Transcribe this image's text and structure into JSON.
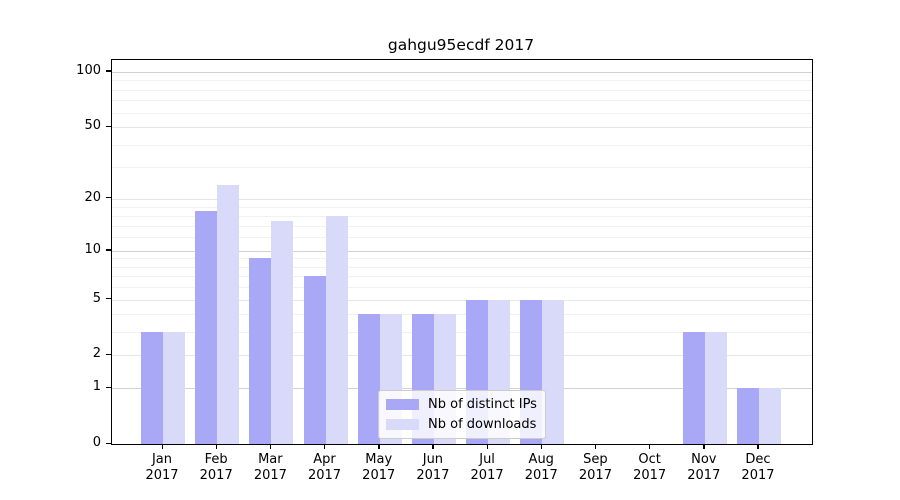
{
  "title": "gahgu95ecdf 2017",
  "chart_data": {
    "type": "bar",
    "title": "gahgu95ecdf 2017",
    "categories": [
      "Jan 2017",
      "Feb 2017",
      "Mar 2017",
      "Apr 2017",
      "May 2017",
      "Jun 2017",
      "Jul 2017",
      "Aug 2017",
      "Sep 2017",
      "Oct 2017",
      "Nov 2017",
      "Dec 2017"
    ],
    "series": [
      {
        "name": "Nb of distinct IPs",
        "color": "#a8a8f6",
        "values": [
          3,
          17,
          9,
          7,
          4,
          4,
          5,
          5,
          0,
          0,
          3,
          1
        ]
      },
      {
        "name": "Nb of downloads",
        "color": "#d9d9fa",
        "values": [
          3,
          24,
          15,
          16,
          4,
          4,
          5,
          5,
          0,
          0,
          3,
          1
        ]
      }
    ],
    "y_axis": {
      "scale": "log10(1+v)",
      "tick_values": [
        0,
        1,
        2,
        5,
        10,
        20,
        50,
        100
      ],
      "tick_labels": [
        "0",
        "1",
        "2",
        "5",
        "10",
        "20",
        "50",
        "100"
      ],
      "max": 116
    },
    "gridlines": {
      "minor": [
        3,
        4,
        6,
        7,
        8,
        9,
        12,
        14,
        16,
        18,
        30,
        40,
        60,
        70,
        80,
        90
      ],
      "mid": [
        2,
        5,
        20,
        50
      ],
      "major": [
        1,
        10,
        100
      ]
    },
    "legend_position": "inside-bottom-center",
    "grid": "horizontal-only"
  },
  "legend": {
    "items": [
      {
        "label": "Nb of distinct IPs",
        "swatch": "dark-purple-swatch"
      },
      {
        "label": "Nb of downloads",
        "swatch": "light-purple-swatch"
      }
    ]
  }
}
